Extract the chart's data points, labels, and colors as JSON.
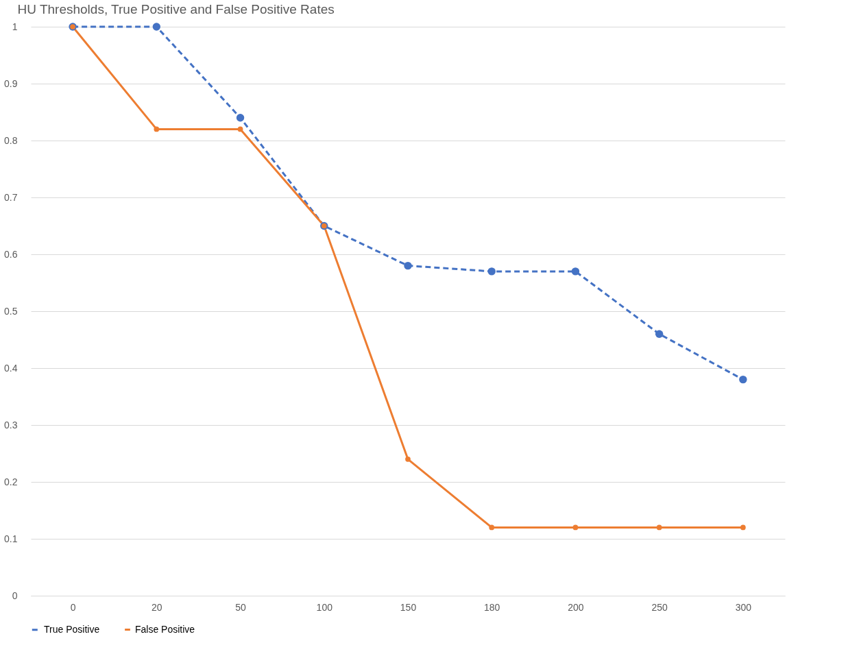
{
  "chart_data": {
    "type": "line",
    "title": "HU Thresholds, True Positive and False Positive Rates",
    "categories": [
      "0",
      "20",
      "50",
      "100",
      "150",
      "180",
      "200",
      "250",
      "300"
    ],
    "series": [
      {
        "name": "True Positive",
        "color": "#4472c4",
        "line_style": "dashed",
        "values": [
          1,
          1,
          0.84,
          0.65,
          0.58,
          0.57,
          0.57,
          0.46,
          0.38
        ]
      },
      {
        "name": "False Positive",
        "color": "#ed7d31",
        "line_style": "solid",
        "values": [
          1,
          0.82,
          0.82,
          0.65,
          0.24,
          0.12,
          0.12,
          0.12,
          0.12
        ]
      }
    ],
    "ylim": [
      0,
      1
    ],
    "yticks": [
      0,
      0.1,
      0.2,
      0.3,
      0.4,
      0.5,
      0.6,
      0.7,
      0.8,
      0.9,
      1
    ],
    "grid": "y",
    "legend": "bottom",
    "marker": "circle"
  }
}
